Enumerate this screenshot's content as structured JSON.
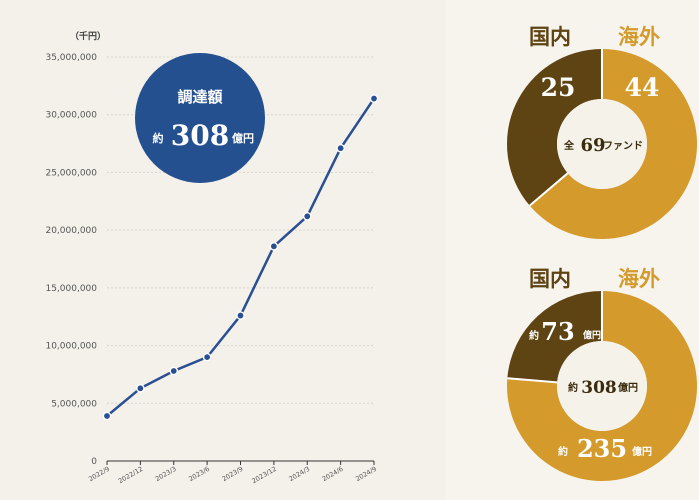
{
  "chart_data": [
    {
      "type": "line",
      "ylabel": "（千円）",
      "x": [
        "2022/9",
        "2022/12",
        "2023/3",
        "2023/6",
        "2023/9",
        "2023/12",
        "2024/3",
        "2024/6",
        "2024/9"
      ],
      "series": [
        {
          "values": [
            3900000,
            6300000,
            7800000,
            9000000,
            12600000,
            18600000,
            21200000,
            27100000,
            31400000
          ]
        }
      ],
      "yticks": [
        "0",
        "5,000,000",
        "10,000,000",
        "15,000,000",
        "20,000,000",
        "25,000,000",
        "30,000,000",
        "35,000,000"
      ],
      "ylim": [
        0,
        35000000
      ],
      "grid": true,
      "colors": {
        "line": "#2a4f92",
        "grid": "#d9d5cc"
      },
      "badge": {
        "title": "調達額",
        "prefix": "約",
        "value": "308",
        "unit": "億円",
        "color": "#24508f"
      }
    },
    {
      "type": "pie",
      "categories": [
        "海外",
        "国内"
      ],
      "values": [
        44,
        25
      ],
      "value_labels": [
        "44",
        "25"
      ],
      "center_prefix": "全",
      "center_value": "69",
      "center_unit": "ファンド",
      "colors": {
        "overseas": "#d49a2b",
        "domestic": "#5e4313"
      }
    },
    {
      "type": "pie",
      "categories": [
        "海外",
        "国内"
      ],
      "values": [
        235,
        73
      ],
      "value_labels": [
        "235",
        "73"
      ],
      "value_prefix": "約",
      "value_unit": "億円",
      "center_prefix": "約",
      "center_value": "308",
      "center_unit": "億円",
      "colors": {
        "overseas": "#d49a2b",
        "domestic": "#5e4313"
      }
    }
  ]
}
